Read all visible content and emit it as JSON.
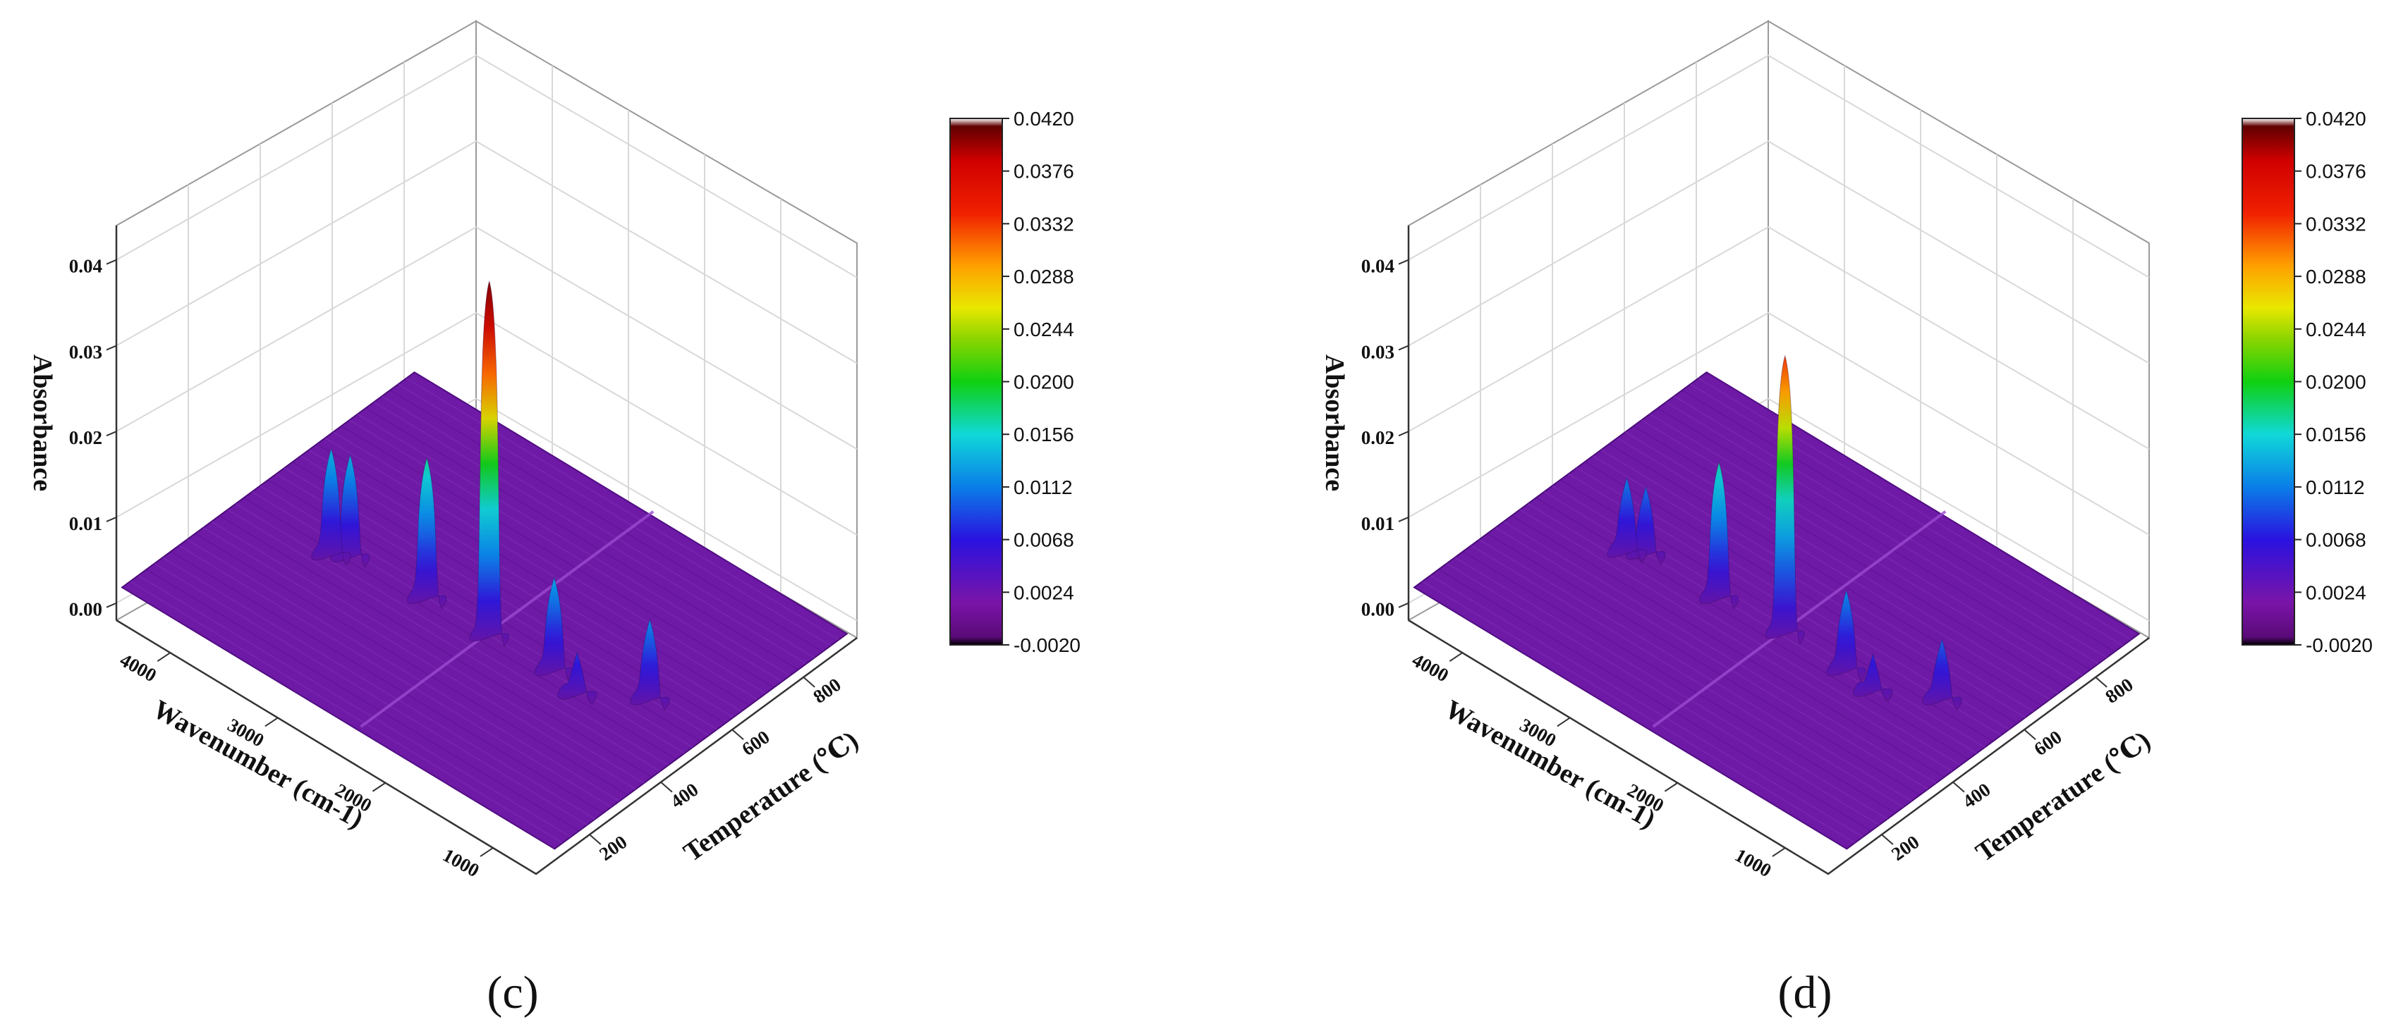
{
  "chart_data": [
    {
      "type": "surface3d",
      "panel_label": "(c)",
      "xlabel": "Wavenumber (cm-1)",
      "ylabel": "Temperature (℃)",
      "zlabel": "Absorbance",
      "x_ticks": [
        "4000",
        "3000",
        "2000",
        "1000"
      ],
      "y_ticks": [
        "200",
        "400",
        "600",
        "800"
      ],
      "z_ticks": [
        "0.00",
        "0.01",
        "0.02",
        "0.03",
        "0.04"
      ],
      "xlim": [
        4500,
        600
      ],
      "ylim": [
        50,
        950
      ],
      "zlim": [
        -0.002,
        0.044
      ],
      "colorbar_ticks": [
        "0.0420",
        "0.0376",
        "0.0332",
        "0.0288",
        "0.0244",
        "0.0200",
        "0.0156",
        "0.0112",
        "0.0068",
        "0.0024",
        "-0.0020"
      ],
      "colorbar_range": [
        -0.002,
        0.042
      ],
      "peaks": [
        {
          "wavenumber": 3730,
          "temperature": 420,
          "absorbance": 0.0125
        },
        {
          "wavenumber": 3620,
          "temperature": 440,
          "absorbance": 0.012
        },
        {
          "wavenumber": 2940,
          "temperature": 450,
          "absorbance": 0.0165
        },
        {
          "wavenumber": 2360,
          "temperature": 450,
          "absorbance": 0.0415
        },
        {
          "wavenumber": 1790,
          "temperature": 460,
          "absorbance": 0.011
        },
        {
          "wavenumber": 1510,
          "temperature": 440,
          "absorbance": 0.005
        },
        {
          "wavenumber": 1100,
          "temperature": 520,
          "absorbance": 0.0095
        }
      ]
    },
    {
      "type": "surface3d",
      "panel_label": "(d)",
      "xlabel": "Wavenumber (cm-1)",
      "ylabel": "Temperature (℃)",
      "zlabel": "Absorbance",
      "x_ticks": [
        "4000",
        "3000",
        "2000",
        "1000"
      ],
      "y_ticks": [
        "200",
        "400",
        "600",
        "800"
      ],
      "z_ticks": [
        "0.00",
        "0.01",
        "0.02",
        "0.03",
        "0.04"
      ],
      "xlim": [
        4500,
        600
      ],
      "ylim": [
        50,
        950
      ],
      "zlim": [
        -0.002,
        0.044
      ],
      "colorbar_ticks": [
        "0.0420",
        "0.0376",
        "0.0332",
        "0.0288",
        "0.0244",
        "0.0200",
        "0.0156",
        "0.0112",
        "0.0068",
        "0.0024",
        "-0.0020"
      ],
      "colorbar_range": [
        -0.002,
        0.042
      ],
      "peaks": [
        {
          "wavenumber": 3730,
          "temperature": 430,
          "absorbance": 0.0088
        },
        {
          "wavenumber": 3620,
          "temperature": 450,
          "absorbance": 0.008
        },
        {
          "wavenumber": 2940,
          "temperature": 450,
          "absorbance": 0.016
        },
        {
          "wavenumber": 2360,
          "temperature": 460,
          "absorbance": 0.0325
        },
        {
          "wavenumber": 1790,
          "temperature": 460,
          "absorbance": 0.0095
        },
        {
          "wavenumber": 1510,
          "temperature": 450,
          "absorbance": 0.0045
        },
        {
          "wavenumber": 1100,
          "temperature": 520,
          "absorbance": 0.0072
        }
      ]
    }
  ]
}
